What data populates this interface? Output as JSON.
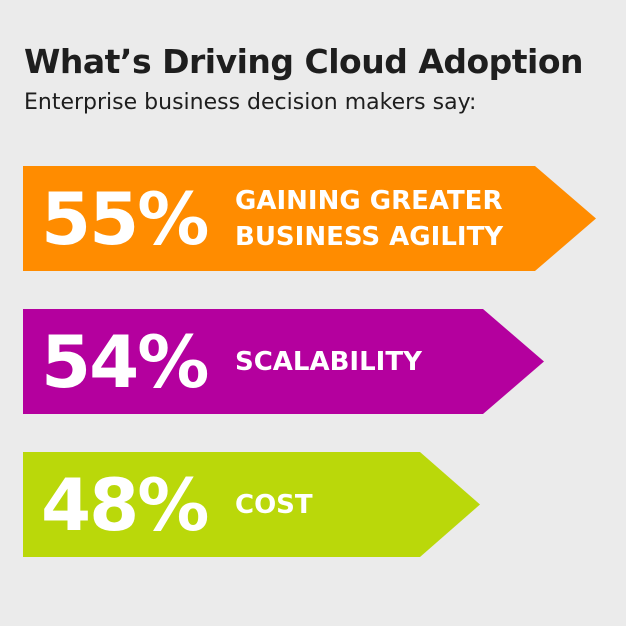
{
  "chart_data": {
    "type": "bar",
    "title": "What’s Driving Cloud Adoption",
    "subtitle": "Enterprise business decision makers say:",
    "categories": [
      "GAINING GREATER\nBUSINESS AGILITY",
      "SCALABILITY",
      "COST"
    ],
    "values": [
      55,
      54,
      48
    ],
    "value_labels": [
      "55%",
      "54%",
      "48%"
    ],
    "colors": [
      "#ff8c00",
      "#b4009e",
      "#bad80a"
    ],
    "unit": "%"
  }
}
